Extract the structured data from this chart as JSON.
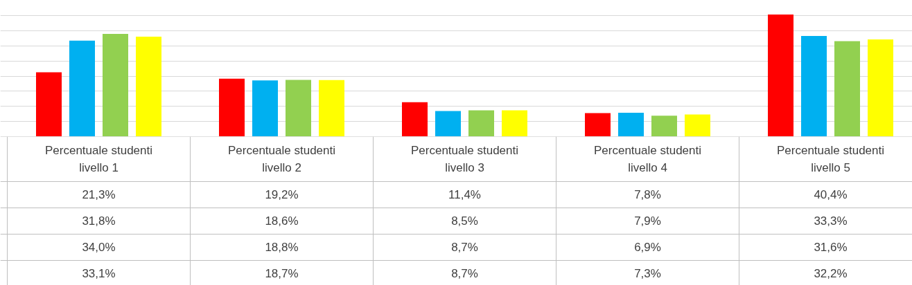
{
  "chart_data": {
    "type": "bar",
    "categories": [
      "Percentuale studenti livello 1",
      "Percentuale studenti livello 2",
      "Percentuale studenti livello 3",
      "Percentuale studenti livello 4",
      "Percentuale studenti livello 5"
    ],
    "series": [
      {
        "color": "#ff0000",
        "values": [
          21.3,
          19.2,
          11.4,
          7.8,
          40.4
        ],
        "value_labels": [
          "21,3%",
          "19,2%",
          "11,4%",
          "7,8%",
          "40,4%"
        ]
      },
      {
        "color": "#00b0f0",
        "values": [
          31.8,
          18.6,
          8.5,
          7.9,
          33.3
        ],
        "value_labels": [
          "31,8%",
          "18,6%",
          "8,5%",
          "7,9%",
          "33,3%"
        ]
      },
      {
        "color": "#92d050",
        "values": [
          34.0,
          18.8,
          8.7,
          6.9,
          31.6
        ],
        "value_labels": [
          "34,0%",
          "18,8%",
          "8,7%",
          "6,9%",
          "31,6%"
        ]
      },
      {
        "color": "#ffff00",
        "values": [
          33.1,
          18.7,
          8.7,
          7.3,
          32.2
        ],
        "value_labels": [
          "33,1%",
          "18,7%",
          "8,7%",
          "7,3%",
          "32,2%"
        ]
      }
    ],
    "grid": "y",
    "tick_labels": "x"
  }
}
